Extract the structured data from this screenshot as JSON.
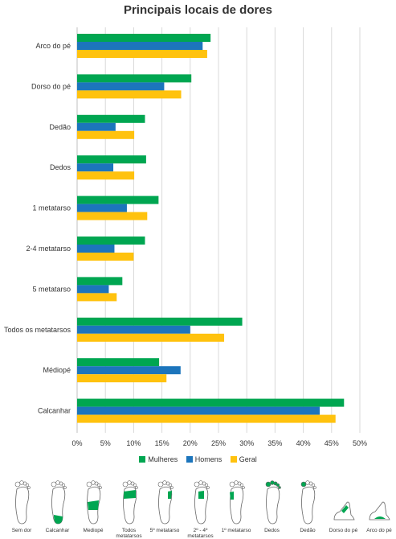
{
  "colors": {
    "Mulheres": "#00a651",
    "Homens": "#1c75bc",
    "Geral": "#ffc20e",
    "grid": "#d9d9d9"
  },
  "chart_data": {
    "type": "bar",
    "orientation": "horizontal",
    "title": "Principais locais de dores",
    "categories": [
      "Arco do pé",
      "Dorso do pé",
      "Dedão",
      "Dedos",
      "1 metatarso",
      "2-4 metatarso",
      "5 metatarso",
      "Todos os metatarsos",
      "Médiopé",
      "Calcanhar"
    ],
    "series": [
      {
        "name": "Mulheres",
        "values": [
          23.6,
          20.2,
          12.0,
          12.2,
          14.4,
          12.0,
          8.0,
          29.2,
          14.5,
          47.2
        ]
      },
      {
        "name": "Homens",
        "values": [
          22.2,
          15.4,
          6.8,
          6.4,
          8.8,
          6.6,
          5.6,
          20.0,
          18.3,
          42.9
        ]
      },
      {
        "name": "Geral",
        "values": [
          23.0,
          18.4,
          10.1,
          10.1,
          12.4,
          10.0,
          7.0,
          26.0,
          15.8,
          45.7
        ]
      }
    ],
    "xlim": [
      0,
      50
    ],
    "xticks": [
      "0%",
      "5%",
      "10%",
      "15%",
      "20%",
      "25%",
      "30%",
      "35%",
      "40%",
      "45%",
      "50%"
    ],
    "grid": true,
    "legend_position": "bottom"
  },
  "legend": [
    "Mulheres",
    "Homens",
    "Geral"
  ],
  "feet": [
    {
      "label": "Sem dor",
      "region": "none"
    },
    {
      "label": "Calcanhar",
      "region": "heel"
    },
    {
      "label": "Mediopé",
      "region": "midfoot"
    },
    {
      "label": "Todos metatarsos",
      "region": "all-metatarsals"
    },
    {
      "label": "5º metatarso",
      "region": "fifth-metatarsal"
    },
    {
      "label": "2º - 4º metatarsos",
      "region": "second-fourth-metatarsals"
    },
    {
      "label": "1º metatarso",
      "region": "first-metatarsal"
    },
    {
      "label": "Dedos",
      "region": "toes"
    },
    {
      "label": "Dedão",
      "region": "big-toe"
    },
    {
      "label": "Dorso do pé",
      "region": "dorsum"
    },
    {
      "label": "Arco do pé",
      "region": "arch"
    }
  ]
}
